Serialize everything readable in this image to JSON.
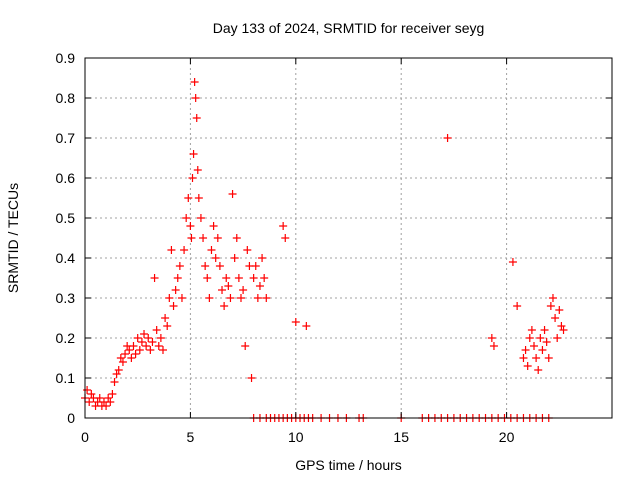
{
  "chart_data": {
    "type": "scatter",
    "title": "Day 133 of 2024, SRMTID for receiver seyg",
    "xlabel": "GPS time / hours",
    "ylabel": "SRMTID / TECUs",
    "xlim": [
      0,
      25
    ],
    "ylim": [
      0,
      0.9
    ],
    "xticks": [
      0,
      5,
      10,
      15,
      20
    ],
    "xtick_labels": [
      "0",
      "5",
      "10",
      "15",
      "20"
    ],
    "yticks": [
      0,
      0.1,
      0.2,
      0.3,
      0.4,
      0.5,
      0.6,
      0.7,
      0.8,
      0.9
    ],
    "ytick_labels": [
      "0",
      "0.1",
      "0.2",
      "0.3",
      "0.4",
      "0.5",
      "0.6",
      "0.7",
      "0.8",
      "0.9"
    ],
    "grid": true,
    "marker": "+",
    "colors": {
      "series": "#ff0000",
      "grid": "#a0a0a0",
      "axis": "#000000"
    },
    "series": [
      {
        "name": "SRMTID",
        "x": [
          0.0,
          0.1,
          0.2,
          0.3,
          0.4,
          0.5,
          0.6,
          0.7,
          0.8,
          0.9,
          1.0,
          1.1,
          1.2,
          1.3,
          1.4,
          1.5,
          1.6,
          1.7,
          1.8,
          1.9,
          2.0,
          2.1,
          2.2,
          2.3,
          2.4,
          2.5,
          2.6,
          2.7,
          2.8,
          2.9,
          3.0,
          3.1,
          3.2,
          3.3,
          3.4,
          3.5,
          3.6,
          3.7,
          3.8,
          3.9,
          4.0,
          4.1,
          4.2,
          4.3,
          4.4,
          4.5,
          4.6,
          4.7,
          4.8,
          4.9,
          5.0,
          5.05,
          5.1,
          5.15,
          5.2,
          5.25,
          5.3,
          5.35,
          5.4,
          5.5,
          5.6,
          5.7,
          5.8,
          5.9,
          6.0,
          6.1,
          6.2,
          6.3,
          6.4,
          6.5,
          6.6,
          6.7,
          6.8,
          6.9,
          7.0,
          7.1,
          7.2,
          7.3,
          7.4,
          7.5,
          7.6,
          7.7,
          7.8,
          7.9,
          8.0,
          8.1,
          8.2,
          8.3,
          8.4,
          8.5,
          8.6,
          9.4,
          9.5,
          10.0,
          10.5,
          17.2,
          19.3,
          19.4,
          20.3,
          20.5,
          20.8,
          20.9,
          21.0,
          21.1,
          21.2,
          21.3,
          21.4,
          21.5,
          21.6,
          21.7,
          21.8,
          21.9,
          22.0,
          22.1,
          22.2,
          22.3,
          22.4,
          22.5,
          22.6,
          22.7,
          8.0,
          8.3,
          8.6,
          8.8,
          9.0,
          9.2,
          9.4,
          9.6,
          9.8,
          10.0,
          10.2,
          10.4,
          10.6,
          10.8,
          11.2,
          11.6,
          12.0,
          12.4,
          13.0,
          13.2,
          15.0,
          16.0,
          16.3,
          16.6,
          16.9,
          17.2,
          17.5,
          17.8,
          18.1,
          18.4,
          18.7,
          19.0,
          19.3,
          19.6,
          19.9,
          20.2,
          20.5,
          20.8,
          21.1,
          21.4,
          21.7,
          22.0
        ],
        "y": [
          0.05,
          0.07,
          0.04,
          0.06,
          0.05,
          0.03,
          0.04,
          0.05,
          0.03,
          0.04,
          0.03,
          0.05,
          0.04,
          0.06,
          0.09,
          0.11,
          0.12,
          0.15,
          0.14,
          0.16,
          0.18,
          0.17,
          0.15,
          0.18,
          0.16,
          0.2,
          0.17,
          0.19,
          0.21,
          0.18,
          0.2,
          0.17,
          0.19,
          0.35,
          0.22,
          0.18,
          0.2,
          0.17,
          0.25,
          0.23,
          0.3,
          0.42,
          0.28,
          0.32,
          0.35,
          0.38,
          0.3,
          0.42,
          0.5,
          0.55,
          0.48,
          0.45,
          0.6,
          0.66,
          0.84,
          0.8,
          0.75,
          0.62,
          0.55,
          0.5,
          0.45,
          0.38,
          0.35,
          0.3,
          0.42,
          0.48,
          0.4,
          0.45,
          0.38,
          0.32,
          0.28,
          0.35,
          0.33,
          0.3,
          0.56,
          0.4,
          0.45,
          0.35,
          0.3,
          0.32,
          0.18,
          0.42,
          0.38,
          0.1,
          0.35,
          0.38,
          0.3,
          0.33,
          0.4,
          0.35,
          0.3,
          0.48,
          0.45,
          0.24,
          0.23,
          0.7,
          0.2,
          0.18,
          0.39,
          0.28,
          0.15,
          0.17,
          0.13,
          0.2,
          0.22,
          0.18,
          0.15,
          0.12,
          0.2,
          0.17,
          0.22,
          0.19,
          0.15,
          0.28,
          0.3,
          0.25,
          0.2,
          0.27,
          0.23,
          0.22,
          0.0,
          0.0,
          0.0,
          0.0,
          0.0,
          0.0,
          0.0,
          0.0,
          0.0,
          0.0,
          0.0,
          0.0,
          0.0,
          0.0,
          0.0,
          0.0,
          0.0,
          0.0,
          0.0,
          0.0,
          0.0,
          0.0,
          0.0,
          0.0,
          0.0,
          0.0,
          0.0,
          0.0,
          0.0,
          0.0,
          0.0,
          0.0,
          0.0,
          0.0,
          0.0,
          0.0,
          0.0,
          0.0,
          0.0,
          0.0,
          0.0,
          0.0
        ]
      }
    ]
  }
}
